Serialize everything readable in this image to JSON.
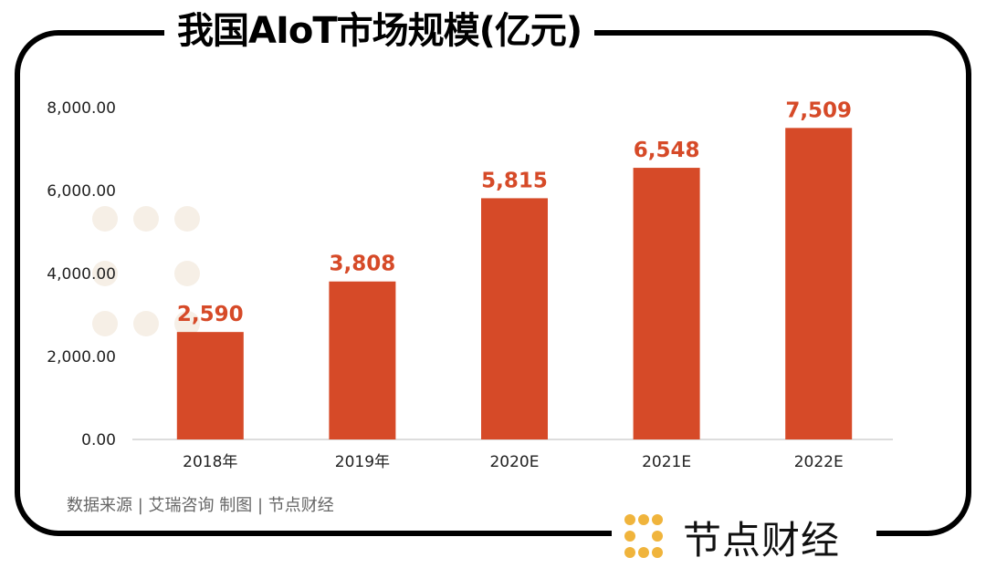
{
  "chart_data": {
    "type": "bar",
    "title": "我国AIoT市场规模(亿元)",
    "categories": [
      "2018年",
      "2019年",
      "2020E",
      "2021E",
      "2022E"
    ],
    "values": [
      2590,
      3808,
      5815,
      6548,
      7509
    ],
    "data_labels": [
      "2,590",
      "3,808",
      "5,815",
      "6,548",
      "7,509"
    ],
    "yticks": [
      "0.00",
      "2,000.00",
      "4,000.00",
      "6,000.00",
      "8,000.00"
    ],
    "ylim": [
      0,
      8000
    ],
    "xlabel": "",
    "ylabel": "",
    "bar_color": "#d64a28",
    "label_color": "#d64a28",
    "grid": false
  },
  "source": "数据来源 | 艾瑞咨询  制图 | 节点财经",
  "brand": "节点财经",
  "watermark": "节点财经"
}
